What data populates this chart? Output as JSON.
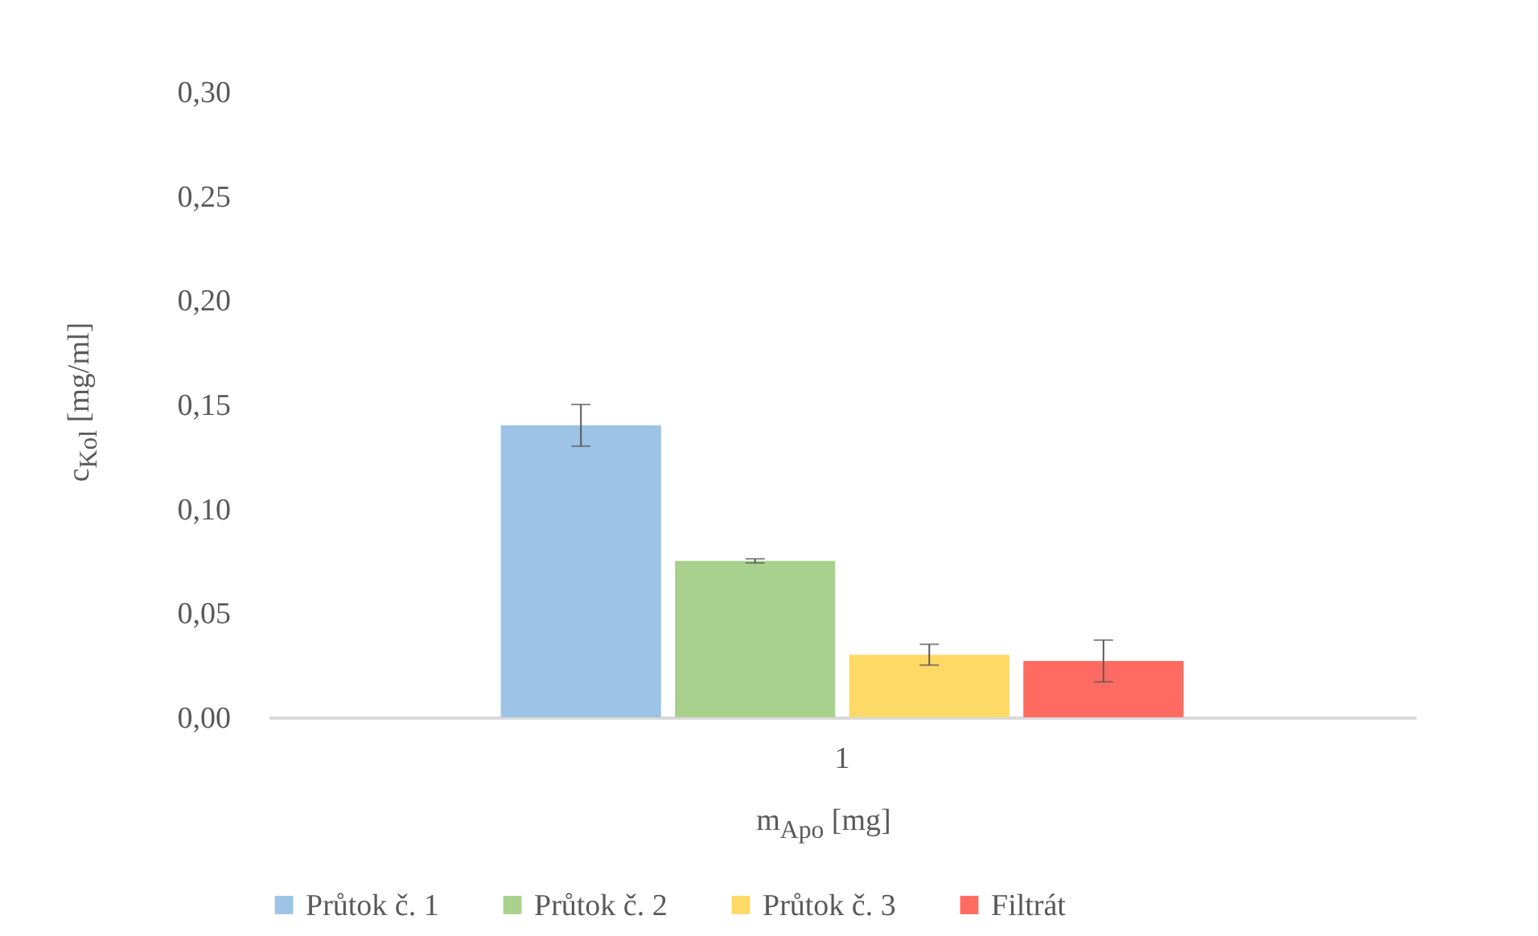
{
  "chart_data": {
    "type": "bar",
    "xlabel": "m$_{Apo}$ [mg]",
    "ylabel": "c$_{Kol}$ [mg/ml]",
    "categories": [
      "1"
    ],
    "series": [
      {
        "name": "Průtok č. 1",
        "color": "#9dc3e6",
        "values": [
          0.14
        ],
        "errors": [
          0.01
        ]
      },
      {
        "name": "Průtok č. 2",
        "color": "#a9d18e",
        "values": [
          0.075
        ],
        "errors": [
          0.001
        ]
      },
      {
        "name": "Průtok č. 3",
        "color": "#ffd966",
        "values": [
          0.03
        ],
        "errors": [
          0.005
        ]
      },
      {
        "name": "Filtrát",
        "color": "#ff6b61",
        "values": [
          0.027
        ],
        "errors": [
          0.01
        ]
      }
    ],
    "ylim": [
      0,
      0.3
    ],
    "yticks": [
      {
        "value": 0,
        "label": "0,00"
      },
      {
        "value": 0.05,
        "label": "0,05"
      },
      {
        "value": 0.1,
        "label": "0,10"
      },
      {
        "value": 0.15,
        "label": "0,15"
      },
      {
        "value": 0.2,
        "label": "0,20"
      },
      {
        "value": 0.25,
        "label": "0,25"
      },
      {
        "value": 0.3,
        "label": "0,30"
      }
    ],
    "grid": false,
    "legend": "bottom"
  }
}
